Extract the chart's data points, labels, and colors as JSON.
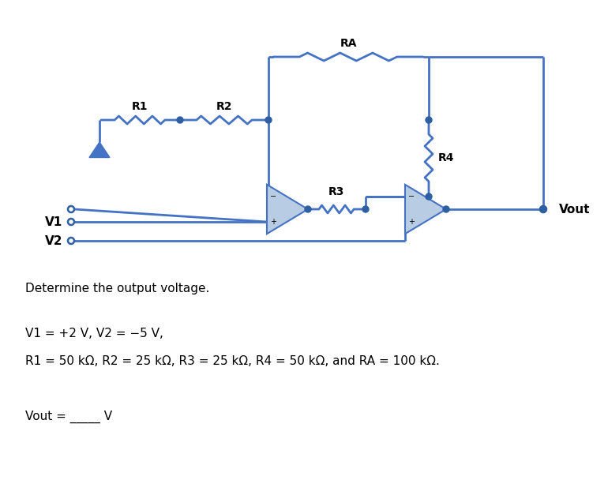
{
  "bg_color": "#ffffff",
  "wire_color": "#4472c4",
  "wire_lw": 2.0,
  "resistor_color": "#4472c4",
  "opamp_fill": "#b8cce4",
  "opamp_edge": "#4472c4",
  "dot_color": "#2e5fa3",
  "text_color": "#000000",
  "line1": "Determine the output voltage.",
  "line2": "V1 = +2 V, V2 = −5 V,",
  "line3": "R1 = 50 kΩ, R2 = 25 kΩ, R3 = 25 kΩ, R4 = 50 kΩ, and RA = 100 kΩ.",
  "line4": "Vout = _____ V",
  "label_R1": "R1",
  "label_R2": "R2",
  "label_R3": "R3",
  "label_R4": "R4",
  "label_RA": "RA",
  "label_V1": "V1",
  "label_V2": "V2",
  "label_Vout": "Vout"
}
